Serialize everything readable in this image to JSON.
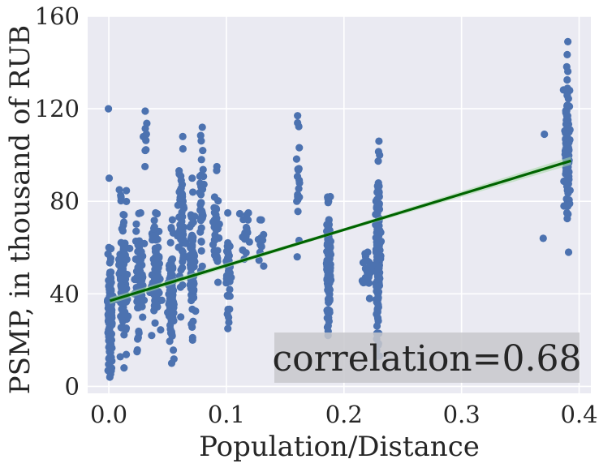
{
  "chart_data": {
    "type": "scatter",
    "xlabel": "Population/Distance",
    "ylabel": "PSMP, in thousand of RUB",
    "xlim": [
      -0.018,
      0.41
    ],
    "ylim": [
      -3,
      160
    ],
    "xticks": [
      0.0,
      0.1,
      0.2,
      0.3,
      0.4
    ],
    "xtick_labels": [
      "0.0",
      "0.1",
      "0.2",
      "0.3",
      "0.4"
    ],
    "yticks": [
      0,
      40,
      80,
      120,
      160
    ],
    "ytick_labels": [
      "0",
      "40",
      "80",
      "120",
      "160"
    ],
    "grid": true,
    "background": "#eaeaf2",
    "grid_color": "#ffffff",
    "point_color": "#4c72b0",
    "regression_color": "#006400",
    "ci_color": "#a8d8a8",
    "regression_line": {
      "x": [
        0.001,
        0.393
      ],
      "y": [
        37,
        97.5
      ]
    },
    "annotation": {
      "text": "correlation=0.68",
      "position": "bottom-right",
      "box_color": "#c8c8cc"
    },
    "series": [
      {
        "name": "observations",
        "clusters": [
          {
            "x": 0.001,
            "xspread": 0.003,
            "ymin": 4,
            "ymax": 60,
            "n": 150
          },
          {
            "x": 0.0,
            "xspread": 0.001,
            "ymin": 90,
            "ymax": 120,
            "n": 2
          },
          {
            "x": 0.012,
            "xspread": 0.007,
            "ymin": 8,
            "ymax": 85,
            "n": 110
          },
          {
            "x": 0.026,
            "xspread": 0.006,
            "ymin": 15,
            "ymax": 75,
            "n": 90
          },
          {
            "x": 0.031,
            "xspread": 0.003,
            "ymin": 95,
            "ymax": 119,
            "n": 10
          },
          {
            "x": 0.04,
            "xspread": 0.006,
            "ymin": 22,
            "ymax": 75,
            "n": 80
          },
          {
            "x": 0.053,
            "xspread": 0.004,
            "ymin": 10,
            "ymax": 72,
            "n": 110
          },
          {
            "x": 0.062,
            "xspread": 0.004,
            "ymin": 30,
            "ymax": 108,
            "n": 60
          },
          {
            "x": 0.071,
            "xspread": 0.003,
            "ymin": 20,
            "ymax": 90,
            "n": 90
          },
          {
            "x": 0.079,
            "xspread": 0.003,
            "ymin": 50,
            "ymax": 112,
            "n": 40
          },
          {
            "x": 0.091,
            "xspread": 0.004,
            "ymin": 45,
            "ymax": 95,
            "n": 30
          },
          {
            "x": 0.102,
            "xspread": 0.003,
            "ymin": 25,
            "ymax": 75,
            "n": 45
          },
          {
            "x": 0.116,
            "xspread": 0.006,
            "ymin": 55,
            "ymax": 75,
            "n": 20
          },
          {
            "x": 0.129,
            "xspread": 0.004,
            "ymin": 52,
            "ymax": 72,
            "n": 14
          },
          {
            "x": 0.161,
            "xspread": 0.002,
            "ymin": 56,
            "ymax": 117,
            "n": 22
          },
          {
            "x": 0.187,
            "xspread": 0.003,
            "ymin": 22,
            "ymax": 82,
            "n": 140
          },
          {
            "x": 0.219,
            "xspread": 0.005,
            "ymin": 38,
            "ymax": 58,
            "n": 30
          },
          {
            "x": 0.229,
            "xspread": 0.003,
            "ymin": 13,
            "ymax": 106,
            "n": 150
          },
          {
            "x": 0.37,
            "xspread": 0.002,
            "ymin": 64,
            "ymax": 109,
            "n": 2
          },
          {
            "x": 0.39,
            "xspread": 0.004,
            "ymin": 58,
            "ymax": 149,
            "n": 110
          }
        ]
      }
    ]
  }
}
